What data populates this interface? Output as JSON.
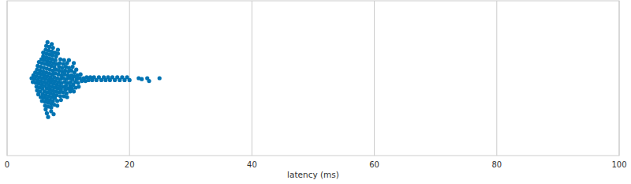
{
  "chart_data": {
    "type": "swarm",
    "xlabel": "latency (ms)",
    "color": "#0173b2",
    "grid": true,
    "tick_labels": "x",
    "xlim": [
      0,
      100
    ],
    "xticks": [
      0,
      20,
      40,
      60,
      80,
      100
    ],
    "values": [
      4.0,
      4.2,
      4.3,
      4.5,
      4.6,
      4.7,
      4.8,
      4.8,
      4.9,
      4.9,
      5.0,
      5.0,
      5.1,
      5.1,
      5.2,
      5.2,
      5.3,
      5.3,
      5.4,
      5.4,
      5.5,
      5.5,
      5.5,
      5.6,
      5.6,
      5.7,
      5.7,
      5.7,
      5.8,
      5.8,
      5.8,
      5.9,
      5.9,
      5.9,
      6.0,
      6.0,
      6.0,
      6.1,
      6.1,
      6.1,
      6.2,
      6.2,
      6.2,
      6.2,
      6.3,
      6.3,
      6.3,
      6.3,
      6.4,
      6.4,
      6.4,
      6.4,
      6.5,
      6.5,
      6.5,
      6.5,
      6.5,
      6.6,
      6.6,
      6.6,
      6.6,
      6.7,
      6.7,
      6.7,
      6.7,
      6.8,
      6.8,
      6.8,
      6.8,
      6.9,
      6.9,
      6.9,
      6.9,
      7.0,
      7.0,
      7.0,
      7.1,
      7.1,
      7.1,
      7.1,
      7.2,
      7.2,
      7.2,
      7.2,
      7.3,
      7.3,
      7.3,
      7.3,
      7.4,
      7.4,
      7.4,
      7.4,
      7.5,
      7.5,
      7.5,
      7.5,
      7.6,
      7.6,
      7.6,
      7.6,
      7.7,
      7.7,
      7.7,
      7.8,
      7.8,
      7.8,
      7.9,
      7.9,
      7.9,
      8.0,
      8.0,
      8.0,
      8.1,
      8.1,
      8.1,
      8.2,
      8.2,
      8.2,
      8.3,
      8.3,
      8.3,
      8.4,
      8.4,
      8.5,
      8.5,
      8.5,
      8.6,
      8.6,
      8.7,
      8.7,
      8.7,
      8.8,
      8.8,
      8.9,
      8.9,
      9.0,
      9.0,
      9.1,
      9.1,
      9.2,
      9.2,
      9.3,
      9.3,
      9.4,
      9.4,
      9.5,
      9.5,
      9.6,
      9.6,
      9.7,
      9.7,
      9.8,
      9.8,
      9.9,
      9.9,
      10.0,
      10.0,
      10.1,
      10.1,
      10.2,
      10.3,
      10.3,
      10.4,
      10.5,
      10.5,
      10.6,
      10.7,
      10.7,
      10.8,
      10.9,
      10.9,
      11.0,
      11.0,
      11.1,
      11.2,
      11.3,
      11.4,
      11.5,
      11.6,
      11.7,
      11.9,
      12.0,
      12.2,
      12.5,
      12.8,
      13.0,
      13.3,
      13.6,
      13.9,
      14.2,
      14.6,
      15.0,
      15.4,
      15.8,
      16.1,
      16.5,
      16.8,
      17.2,
      17.6,
      18.0,
      18.4,
      18.8,
      19.2,
      19.6,
      20.0,
      21.5,
      22.0,
      22.9,
      23.2,
      24.9
    ]
  }
}
